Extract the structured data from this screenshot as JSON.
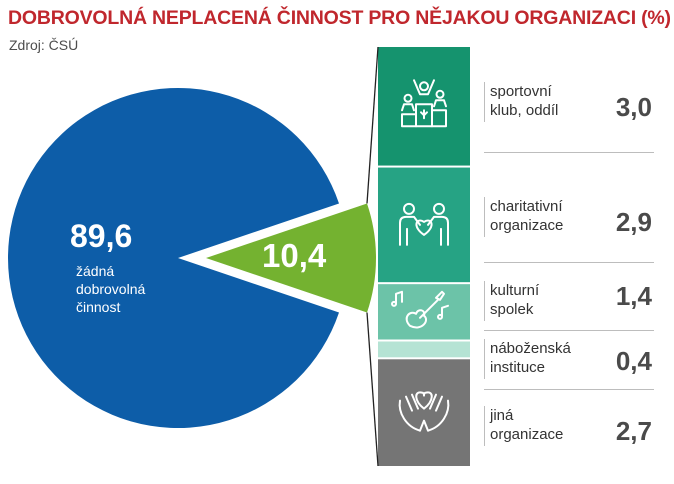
{
  "title": "DOBROVOLNÁ NEPLACENÁ ČINNOST PRO NĚJAKOU ORGANIZACI (%)",
  "source": "Zdroj: ČSÚ",
  "colors": {
    "title": "#c0272d",
    "none": "#0d5da8",
    "volunteer": "#74b230",
    "sport": "#15936e",
    "charity": "#26a384",
    "culture": "#6cc3a8",
    "religion": "#b5e3d4",
    "other": "#757575"
  },
  "chart_data": {
    "type": "pie",
    "title": "DOBROVOLNÁ NEPLACENÁ ČINNOST PRO NĚJAKOU ORGANIZACI (%)",
    "slices": [
      {
        "name": "none",
        "value": 89.6,
        "value_label": "89,6",
        "label_lines": [
          "žádná",
          "dobrovolná",
          "činnost"
        ]
      },
      {
        "name": "volunteer",
        "value": 10.4,
        "value_label": "10,4"
      }
    ],
    "breakdown": [
      {
        "key": "sport",
        "icon": "sports-icon",
        "label_lines": [
          "sportovní",
          "klub, oddíl"
        ],
        "value": 3.0,
        "value_label": "3,0"
      },
      {
        "key": "charity",
        "icon": "charity-icon",
        "label_lines": [
          "charitativní",
          "organizace"
        ],
        "value": 2.9,
        "value_label": "2,9"
      },
      {
        "key": "culture",
        "icon": "guitar-icon",
        "label_lines": [
          "kulturní",
          "spolek"
        ],
        "value": 1.4,
        "value_label": "1,4"
      },
      {
        "key": "religion",
        "icon": null,
        "label_lines": [
          "náboženská",
          "instituce"
        ],
        "value": 0.4,
        "value_label": "0,4"
      },
      {
        "key": "other",
        "icon": "care-hands-icon",
        "label_lines": [
          "jiná",
          "organizace"
        ],
        "value": 2.7,
        "value_label": "2,7"
      }
    ]
  }
}
